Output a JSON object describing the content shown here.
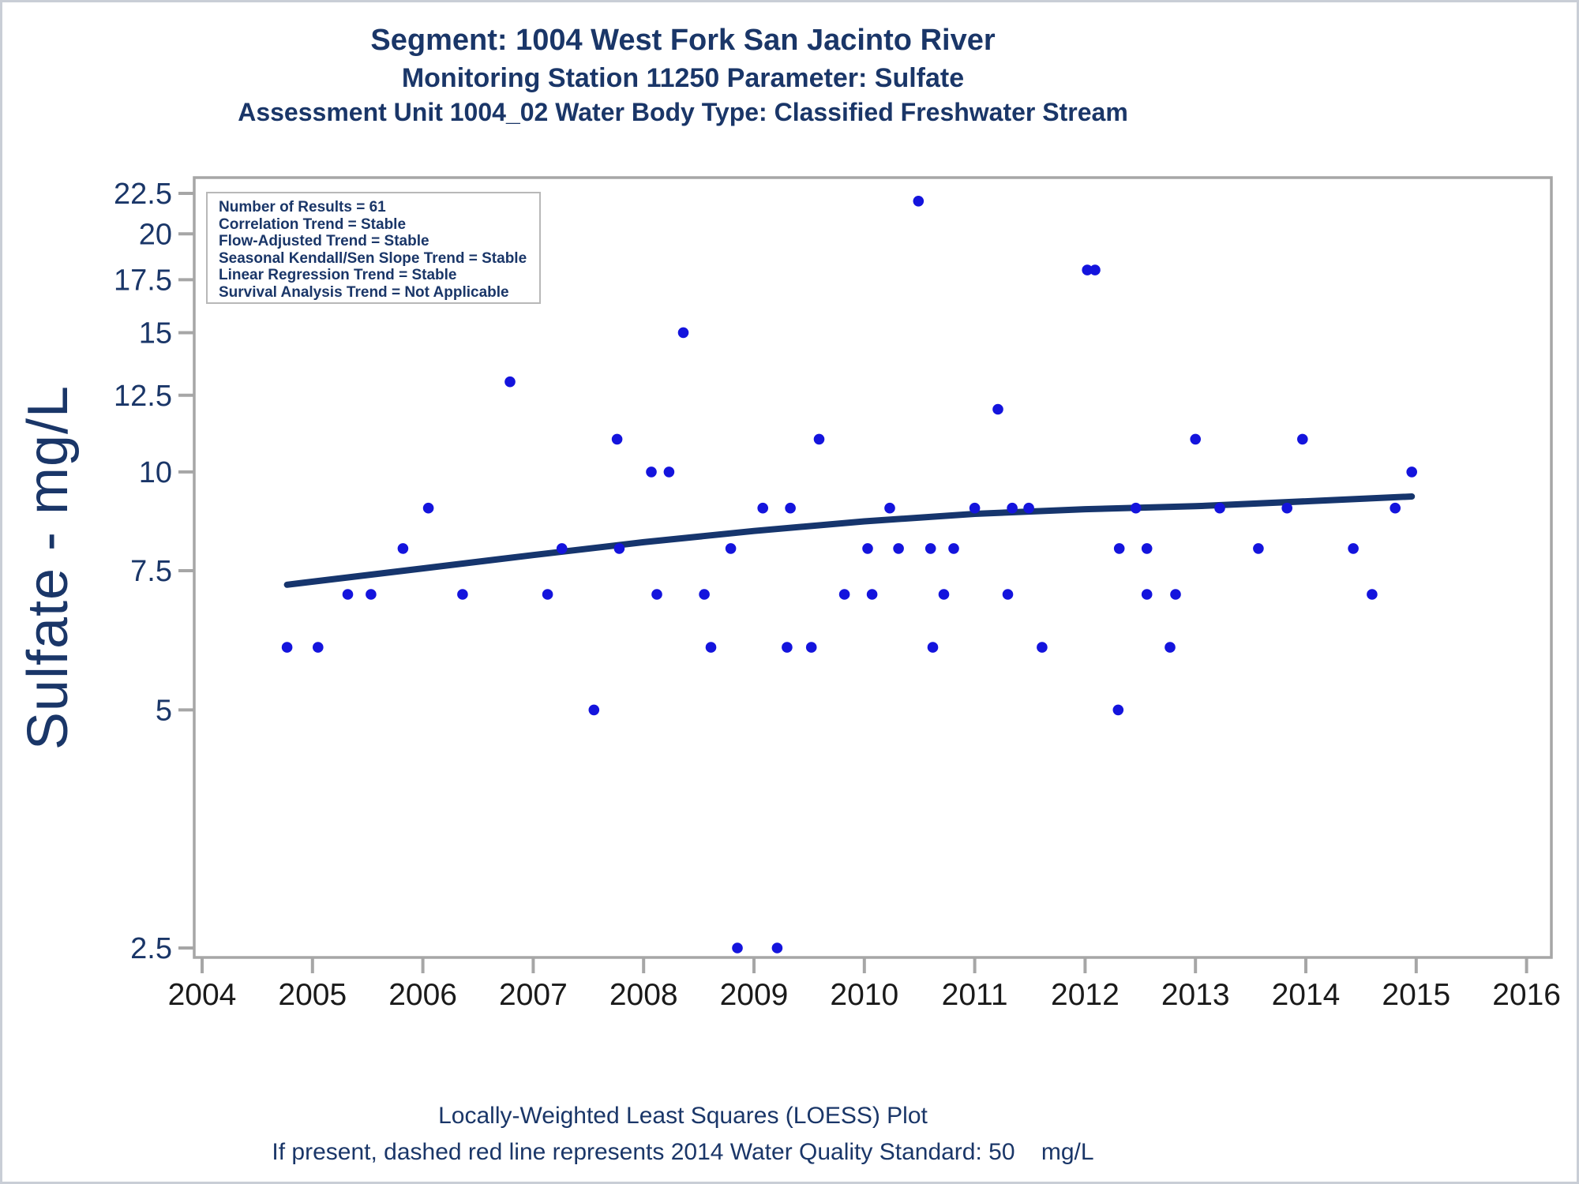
{
  "header": {
    "line1": "Segment: 1004  West Fork San Jacinto River",
    "line2": "Monitoring Station 11250 Parameter: Sulfate",
    "line3": "Assessment Unit 1004_02   Water Body Type: Classified Freshwater Stream"
  },
  "stat_box": {
    "lines": [
      "Number of Results = 61",
      "Correlation Trend = Stable",
      "Flow-Adjusted Trend = Stable",
      "Seasonal Kendall/Sen Slope Trend = Stable",
      "Linear Regression Trend = Stable",
      "Survival Analysis Trend = Not Applicable"
    ]
  },
  "footer": {
    "line1": "Locally-Weighted Least Squares (LOESS) Plot",
    "line2": "If present, dashed red line represents 2014 Water Quality Standard: 50    mg/L"
  },
  "colors": {
    "navy_text": "#1a3668",
    "trend_line": "#16356d",
    "dot": "#1414dd",
    "frame_gray": "#a6a6a6",
    "x_label": "#1a1a1a"
  },
  "chart_data": {
    "type": "scatter",
    "title": "Segment: 1004  West Fork San Jacinto River",
    "subtitle": "Monitoring Station 11250 Parameter: Sulfate",
    "ylabel": "Sulfate - mg/L",
    "xlabel": "",
    "y_scale": "log",
    "xlim": [
      2004,
      2016
    ],
    "ylim": [
      2.5,
      22.5
    ],
    "grid": false,
    "x_ticks": [
      2004,
      2005,
      2006,
      2007,
      2008,
      2009,
      2010,
      2011,
      2012,
      2013,
      2014,
      2015,
      2016
    ],
    "y_ticks": [
      2.5,
      5,
      7.5,
      10,
      12.5,
      15,
      17.5,
      20,
      22.5
    ],
    "n_results": 61,
    "points": [
      [
        2004.77,
        6
      ],
      [
        2005.05,
        6
      ],
      [
        2005.32,
        7
      ],
      [
        2005.53,
        7
      ],
      [
        2005.82,
        8
      ],
      [
        2006.05,
        9
      ],
      [
        2006.36,
        7
      ],
      [
        2006.79,
        13
      ],
      [
        2007.13,
        7
      ],
      [
        2007.26,
        8
      ],
      [
        2007.55,
        5
      ],
      [
        2007.76,
        11
      ],
      [
        2007.78,
        8
      ],
      [
        2008.07,
        10
      ],
      [
        2008.12,
        7
      ],
      [
        2008.23,
        10
      ],
      [
        2008.36,
        15
      ],
      [
        2008.55,
        7
      ],
      [
        2008.61,
        6
      ],
      [
        2008.79,
        8
      ],
      [
        2008.85,
        2.5
      ],
      [
        2009.08,
        9
      ],
      [
        2009.21,
        2.5
      ],
      [
        2009.3,
        6
      ],
      [
        2009.33,
        9
      ],
      [
        2009.52,
        6
      ],
      [
        2009.59,
        11
      ],
      [
        2009.82,
        7
      ],
      [
        2010.03,
        8
      ],
      [
        2010.07,
        7
      ],
      [
        2010.23,
        9
      ],
      [
        2010.31,
        8
      ],
      [
        2010.49,
        22
      ],
      [
        2010.6,
        8
      ],
      [
        2010.62,
        6
      ],
      [
        2010.72,
        7
      ],
      [
        2010.81,
        8
      ],
      [
        2011.0,
        9
      ],
      [
        2011.21,
        12
      ],
      [
        2011.3,
        7
      ],
      [
        2011.34,
        9
      ],
      [
        2011.49,
        9
      ],
      [
        2011.61,
        6
      ],
      [
        2012.02,
        18
      ],
      [
        2012.09,
        18
      ],
      [
        2012.3,
        5
      ],
      [
        2012.31,
        8
      ],
      [
        2012.46,
        9
      ],
      [
        2012.56,
        8
      ],
      [
        2012.56,
        7
      ],
      [
        2012.77,
        6
      ],
      [
        2012.82,
        7
      ],
      [
        2013.0,
        11
      ],
      [
        2013.22,
        9
      ],
      [
        2013.57,
        8
      ],
      [
        2013.83,
        9
      ],
      [
        2013.97,
        11
      ],
      [
        2014.43,
        8
      ],
      [
        2014.6,
        7
      ],
      [
        2014.81,
        9
      ],
      [
        2014.96,
        10
      ]
    ],
    "loess_line": [
      [
        2004.77,
        7.2
      ],
      [
        2006.0,
        7.55
      ],
      [
        2007.0,
        7.85
      ],
      [
        2008.0,
        8.15
      ],
      [
        2009.0,
        8.42
      ],
      [
        2010.0,
        8.66
      ],
      [
        2011.0,
        8.85
      ],
      [
        2012.0,
        8.97
      ],
      [
        2013.0,
        9.05
      ],
      [
        2014.0,
        9.18
      ],
      [
        2014.96,
        9.31
      ]
    ]
  }
}
